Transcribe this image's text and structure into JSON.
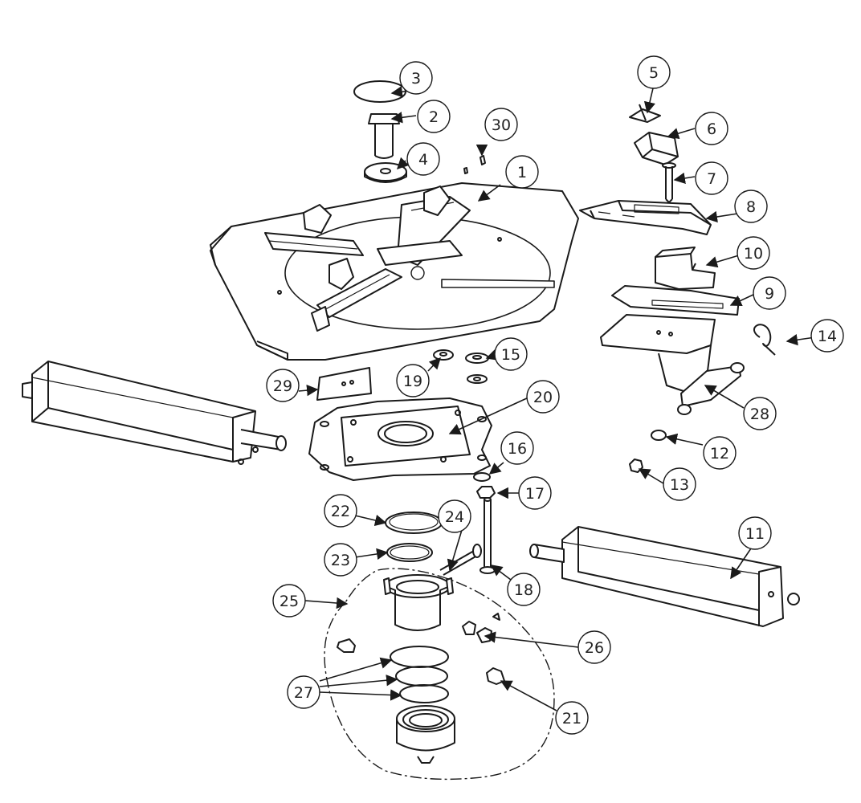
{
  "diagram": {
    "type": "exploded-parts-diagram",
    "colors": {
      "line": "#1a1a1a",
      "paper": "#ffffff",
      "shade": "#cfcfcf"
    },
    "callouts": [
      {
        "id": "c1",
        "label": "1"
      },
      {
        "id": "c2",
        "label": "2"
      },
      {
        "id": "c3",
        "label": "3"
      },
      {
        "id": "c4",
        "label": "4"
      },
      {
        "id": "c5",
        "label": "5"
      },
      {
        "id": "c6",
        "label": "6"
      },
      {
        "id": "c7",
        "label": "7"
      },
      {
        "id": "c8",
        "label": "8"
      },
      {
        "id": "c9",
        "label": "9"
      },
      {
        "id": "c10",
        "label": "10"
      },
      {
        "id": "c11",
        "label": "11"
      },
      {
        "id": "c12",
        "label": "12"
      },
      {
        "id": "c13",
        "label": "13"
      },
      {
        "id": "c14",
        "label": "14"
      },
      {
        "id": "c15",
        "label": "15"
      },
      {
        "id": "c16",
        "label": "16"
      },
      {
        "id": "c17",
        "label": "17"
      },
      {
        "id": "c18",
        "label": "18"
      },
      {
        "id": "c19",
        "label": "19"
      },
      {
        "id": "c20",
        "label": "20"
      },
      {
        "id": "c21",
        "label": "21"
      },
      {
        "id": "c22",
        "label": "22"
      },
      {
        "id": "c23",
        "label": "23"
      },
      {
        "id": "c24",
        "label": "24"
      },
      {
        "id": "c25",
        "label": "25"
      },
      {
        "id": "c26",
        "label": "26"
      },
      {
        "id": "c27",
        "label": "27"
      },
      {
        "id": "c28",
        "label": "28"
      },
      {
        "id": "c29",
        "label": "29"
      },
      {
        "id": "c30",
        "label": "30"
      }
    ]
  }
}
